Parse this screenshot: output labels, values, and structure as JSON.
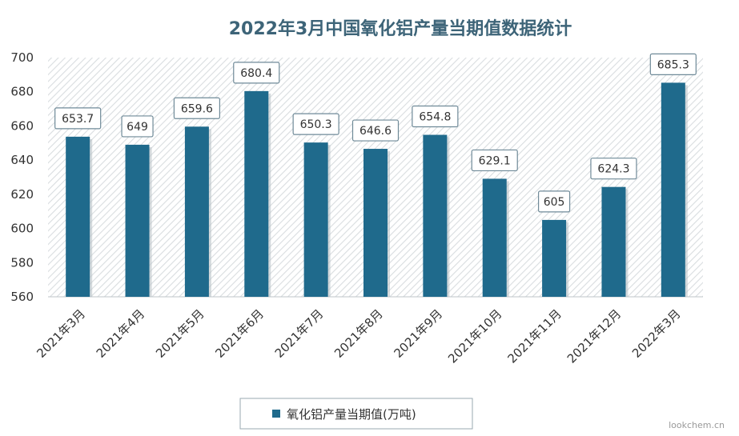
{
  "chart_data": {
    "type": "bar",
    "title": "2022年3月中国氧化铝产量当期值数据统计",
    "categories": [
      "2021年3月",
      "2021年4月",
      "2021年5月",
      "2021年6月",
      "2021年7月",
      "2021年8月",
      "2021年9月",
      "2021年10月",
      "2021年11月",
      "2021年12月",
      "2022年3月"
    ],
    "series": [
      {
        "name": "氧化铝产量当期值(万吨)",
        "values": [
          653.7,
          649,
          659.6,
          680.4,
          650.3,
          646.6,
          654.8,
          629.1,
          605,
          624.3,
          685.3
        ],
        "labels": [
          "653.7",
          "649",
          "659.6",
          "680.4",
          "650.3",
          "646.6",
          "654.8",
          "629.1",
          "605",
          "624.3",
          "685.3"
        ]
      }
    ],
    "ylim": [
      560,
      700
    ],
    "yticks": [
      "560",
      "580",
      "600",
      "620",
      "640",
      "660",
      "680",
      "700"
    ],
    "xlabel": "",
    "ylabel": "",
    "grid": false,
    "legend_position": "bottom",
    "bar_color": "#1f6a8c",
    "background_pattern": "diagonal-hatch"
  },
  "watermark": "lookchem.cn"
}
